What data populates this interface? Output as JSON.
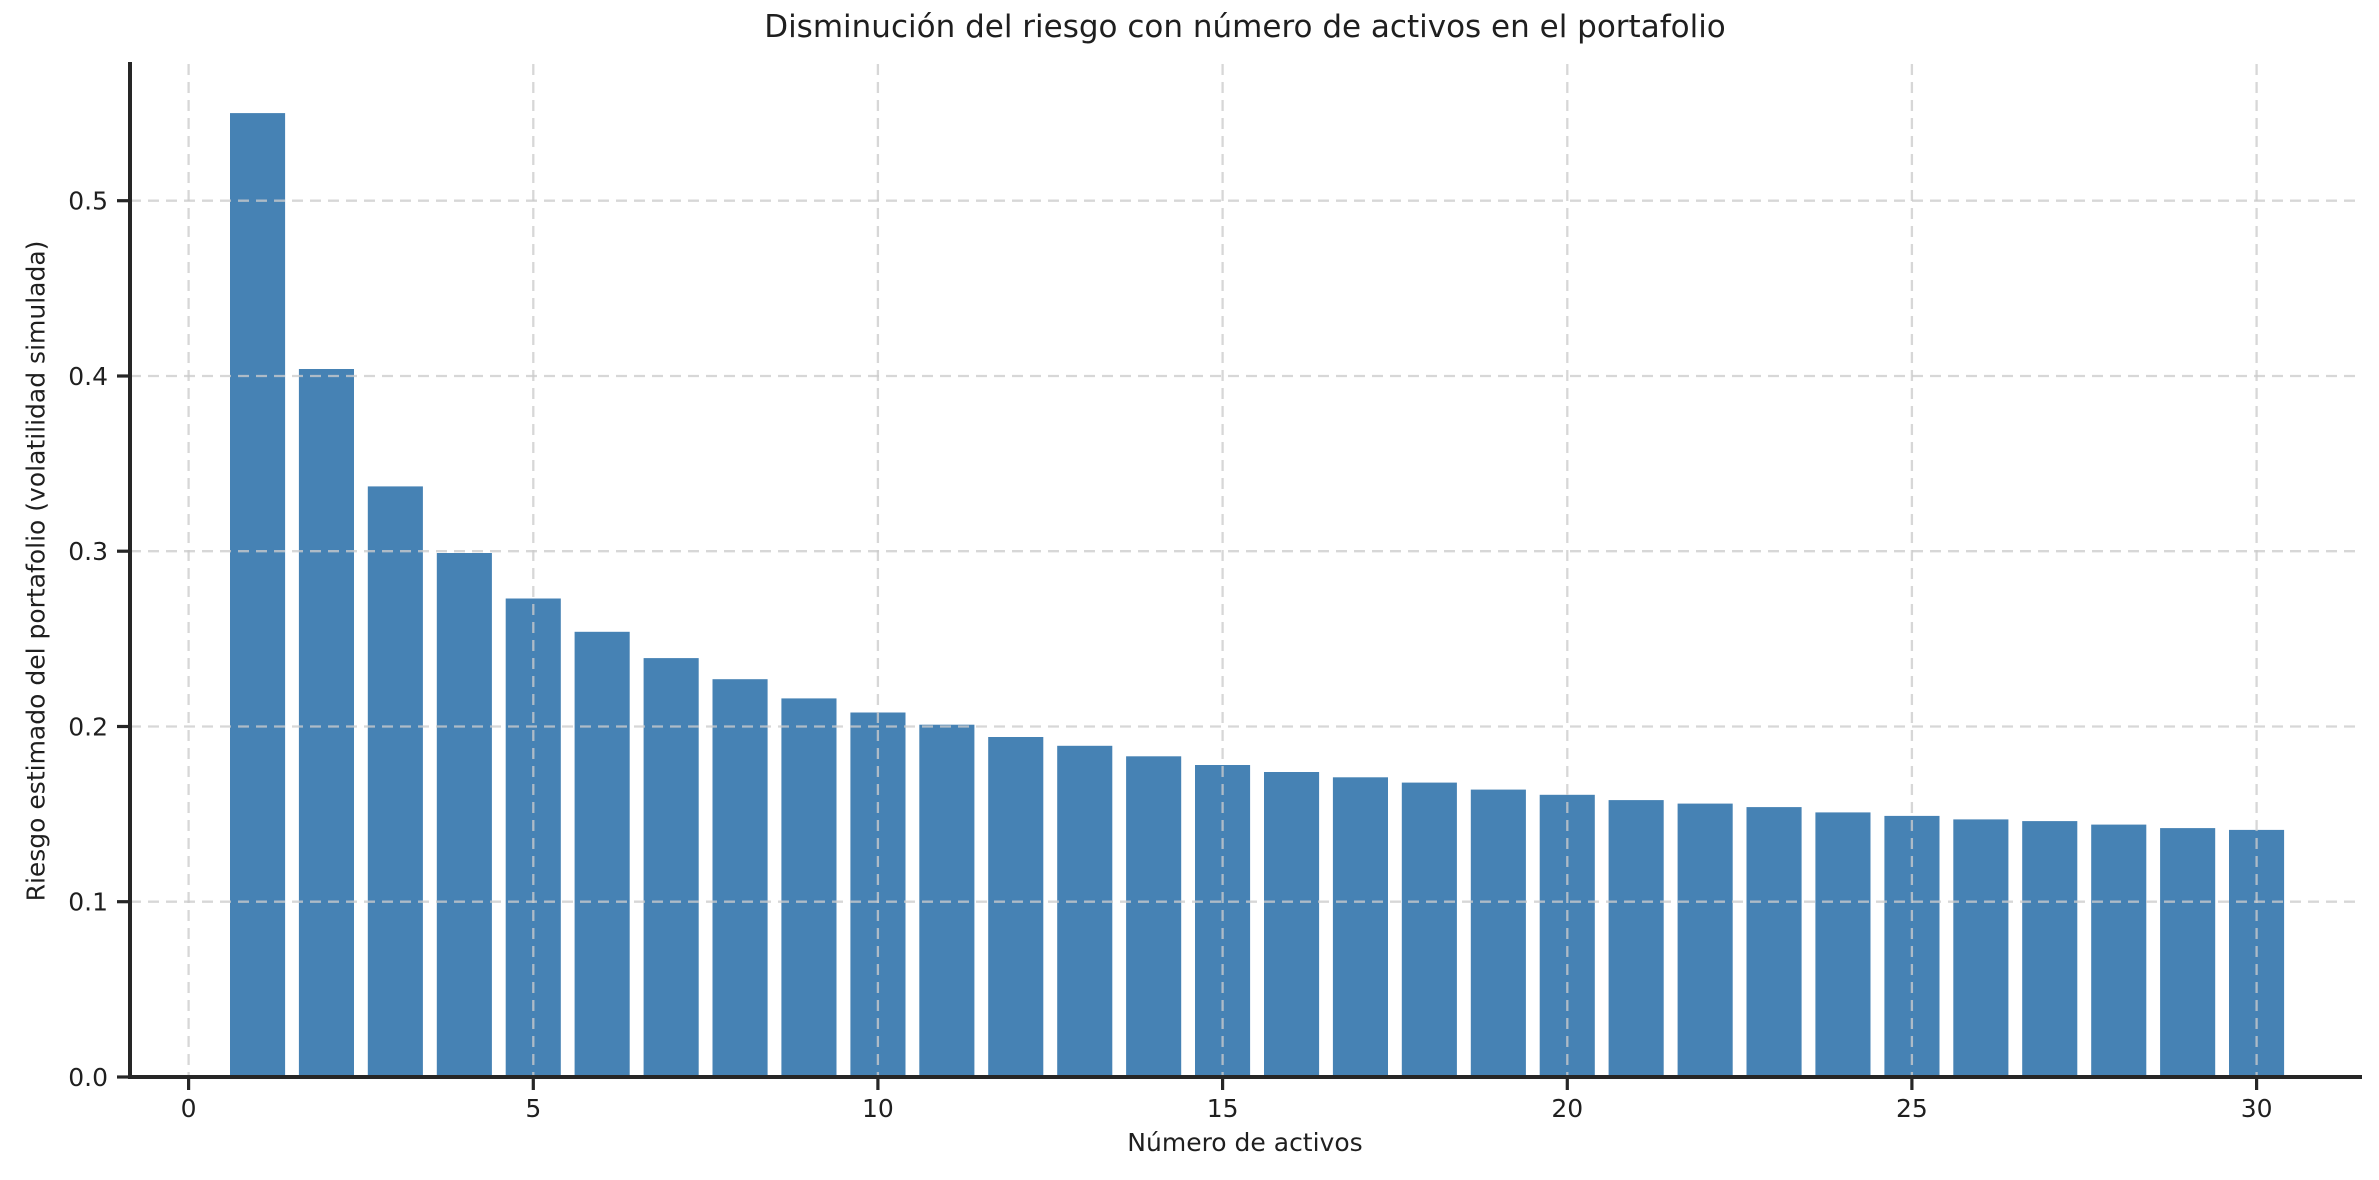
{
  "figure": {
    "background": "#ffffff"
  },
  "chart_data": {
    "type": "bar",
    "title": "Disminución del riesgo con número de activos en el portafolio",
    "xlabel": "Número de activos",
    "ylabel": "Riesgo estimado del portafolio (volatilidad simulada)",
    "x": [
      1,
      2,
      3,
      4,
      5,
      6,
      7,
      8,
      9,
      10,
      11,
      12,
      13,
      14,
      15,
      16,
      17,
      18,
      19,
      20,
      21,
      22,
      23,
      24,
      25,
      26,
      27,
      28,
      29,
      30
    ],
    "values": [
      0.55,
      0.404,
      0.337,
      0.299,
      0.273,
      0.254,
      0.239,
      0.227,
      0.216,
      0.208,
      0.201,
      0.194,
      0.189,
      0.183,
      0.178,
      0.174,
      0.171,
      0.168,
      0.164,
      0.161,
      0.158,
      0.156,
      0.154,
      0.151,
      0.149,
      0.147,
      0.146,
      0.144,
      0.142,
      0.141
    ],
    "bar_color": "#4682b4",
    "bar_width": 0.8,
    "xlim": [
      -0.85,
      31.5
    ],
    "ylim": [
      0,
      0.578
    ],
    "xticks": [
      0,
      5,
      10,
      15,
      20,
      25,
      30
    ],
    "yticks": [
      0.0,
      0.1,
      0.2,
      0.3,
      0.4,
      0.5
    ],
    "ytick_decimals": 1,
    "grid": true,
    "grid_color": "#cccccc",
    "grid_style": "dashed",
    "grid_on_top": true,
    "axis_color": "#262626",
    "text_color": "#1f1f1f",
    "legend": null
  }
}
